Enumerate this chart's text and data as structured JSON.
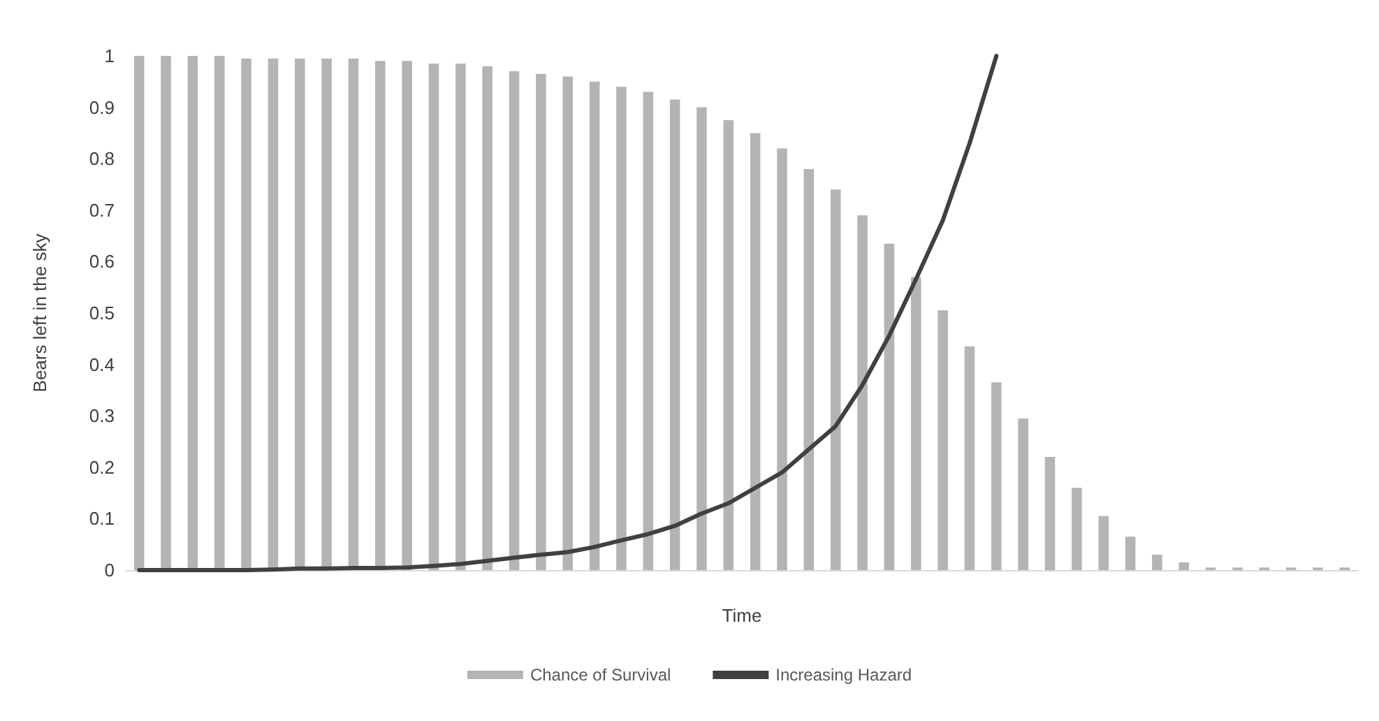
{
  "chart_data": {
    "type": "bar",
    "xlabel": "Time",
    "ylabel": "Bears left in the sky",
    "categories": [
      null,
      null,
      null,
      null,
      null,
      null,
      null,
      null,
      null,
      null,
      null,
      null,
      null,
      null,
      null,
      null,
      null,
      null,
      null,
      null,
      null,
      null,
      null,
      null,
      null,
      null,
      null,
      null,
      null,
      null,
      null,
      null,
      null,
      null,
      null,
      null,
      null,
      null,
      null,
      null,
      null,
      null,
      null,
      null,
      null,
      null
    ],
    "series": [
      {
        "name": "Chance of Survival",
        "color": "#b4b4b4",
        "values": [
          1,
          1,
          1,
          1,
          0.995,
          0.995,
          0.995,
          0.995,
          0.995,
          0.99,
          0.99,
          0.985,
          0.985,
          0.98,
          0.97,
          0.965,
          0.96,
          0.95,
          0.94,
          0.93,
          0.915,
          0.9,
          0.875,
          0.85,
          0.82,
          0.78,
          0.74,
          0.69,
          0.635,
          0.57,
          0.505,
          0.435,
          0.365,
          0.295,
          0.22,
          0.16,
          0.105,
          0.065,
          0.03,
          0.015,
          0.005,
          0.005,
          0.005,
          0.005,
          0.005,
          0.005
        ]
      },
      {
        "name": "Increasing Hazard",
        "type": "line",
        "color": "#404040",
        "values": [
          0,
          0,
          0,
          0,
          0,
          0.001,
          0.003,
          0.003,
          0.004,
          0.004,
          0.005,
          0.008,
          0.012,
          0.018,
          0.024,
          0.03,
          0.035,
          0.045,
          0.058,
          0.07,
          0.086,
          0.11,
          0.13,
          0.16,
          0.19,
          0.235,
          0.28,
          0.36,
          0.456,
          0.566,
          0.68,
          0.83,
          1,
          null,
          null,
          null,
          null,
          null,
          null,
          null,
          null,
          null,
          null,
          null,
          null,
          null
        ]
      }
    ],
    "ylim": [
      0,
      1
    ],
    "yticks": [
      0,
      0.1,
      0.2,
      0.3,
      0.4,
      0.5,
      0.6,
      0.7,
      0.8,
      0.9,
      1
    ],
    "grid": false,
    "legend": "bottom",
    "marker": "none",
    "line_style": "solid"
  }
}
